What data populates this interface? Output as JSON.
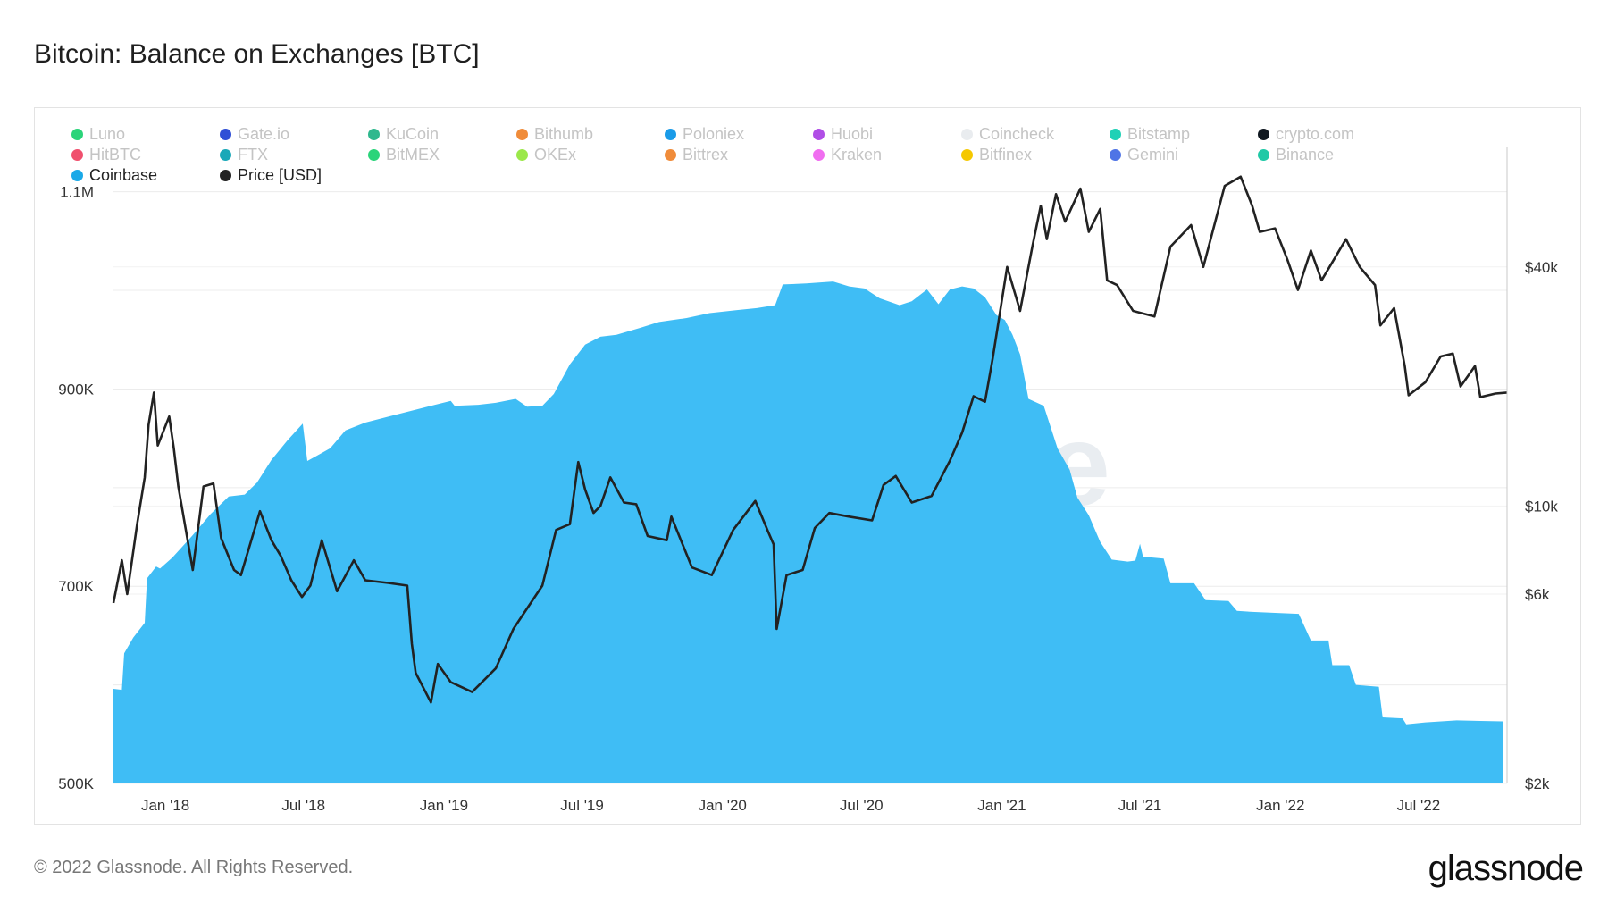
{
  "title": "Bitcoin: Balance on Exchanges [BTC]",
  "footer": {
    "copyright": "© 2022 Glassnode. All Rights Reserved.",
    "brand": "glassnode"
  },
  "watermark": "glassnode",
  "legend": [
    {
      "label": "Luno",
      "color": "#2bd47a",
      "active": false
    },
    {
      "label": "Gate.io",
      "color": "#2f4fd6",
      "active": false
    },
    {
      "label": "KuCoin",
      "color": "#2fb88e",
      "active": false
    },
    {
      "label": "Bithumb",
      "color": "#f08c3a",
      "active": false
    },
    {
      "label": "Poloniex",
      "color": "#1a9be8",
      "active": false
    },
    {
      "label": "Huobi",
      "color": "#b04ee6",
      "active": false
    },
    {
      "label": "Coincheck",
      "color": "#e9ecef",
      "active": false
    },
    {
      "label": "Bitstamp",
      "color": "#1fd1b6",
      "active": false
    },
    {
      "label": "crypto.com",
      "color": "#101820",
      "active": false
    },
    {
      "label": "HitBTC",
      "color": "#f0506e",
      "active": false
    },
    {
      "label": "FTX",
      "color": "#1aa8b8",
      "active": false
    },
    {
      "label": "BitMEX",
      "color": "#2bd47a",
      "active": false
    },
    {
      "label": "OKEx",
      "color": "#9be84a",
      "active": false
    },
    {
      "label": "Bittrex",
      "color": "#f08c3a",
      "active": false
    },
    {
      "label": "Kraken",
      "color": "#f06ef0",
      "active": false
    },
    {
      "label": "Bitfinex",
      "color": "#f5c800",
      "active": false
    },
    {
      "label": "Gemini",
      "color": "#4f74e6",
      "active": false
    },
    {
      "label": "Binance",
      "color": "#1fc9a6",
      "active": false
    },
    {
      "label": "Coinbase",
      "color": "#1aa9e8",
      "active": true
    },
    {
      "label": "Price [USD]",
      "color": "#222222",
      "active": true
    }
  ],
  "chart_data": {
    "type": "area",
    "title": "Bitcoin: Balance on Exchanges [BTC]",
    "x_tick_labels": [
      "Jan '18",
      "Jul '18",
      "Jan '19",
      "Jul '19",
      "Jan '20",
      "Jul '20",
      "Jan '21",
      "Jul '21",
      "Jan '22",
      "Jul '22"
    ],
    "y_left": {
      "ticks": [
        500000,
        700000,
        900000,
        1100000
      ],
      "tick_labels": [
        "500K",
        "700K",
        "900K",
        "1.1M"
      ],
      "range": [
        500000,
        1145000
      ]
    },
    "y_right": {
      "scale": "log",
      "ticks": [
        2000,
        6000,
        10000,
        40000
      ],
      "tick_labels": [
        "$2k",
        "$6k",
        "$10k",
        "$40k"
      ],
      "range": [
        2000,
        80000
      ]
    },
    "x_range": [
      "2017-10-25",
      "2022-10-25"
    ],
    "series": [
      {
        "name": "Coinbase",
        "axis": "left",
        "color": "#3fbdf5",
        "points": [
          [
            "2017-10-25",
            596000
          ],
          [
            "2017-11-05",
            595000
          ],
          [
            "2017-11-08",
            632000
          ],
          [
            "2017-11-20",
            648000
          ],
          [
            "2017-12-05",
            663000
          ],
          [
            "2017-12-08",
            708000
          ],
          [
            "2017-12-20",
            720000
          ],
          [
            "2017-12-25",
            718000
          ],
          [
            "2018-01-10",
            729000
          ],
          [
            "2018-02-05",
            751000
          ],
          [
            "2018-03-01",
            773000
          ],
          [
            "2018-03-25",
            791000
          ],
          [
            "2018-04-15",
            793000
          ],
          [
            "2018-05-01",
            805000
          ],
          [
            "2018-05-20",
            828000
          ],
          [
            "2018-06-10",
            848000
          ],
          [
            "2018-06-30",
            865000
          ],
          [
            "2018-07-06",
            827000
          ],
          [
            "2018-07-20",
            833000
          ],
          [
            "2018-08-05",
            840000
          ],
          [
            "2018-08-25",
            858000
          ],
          [
            "2018-09-20",
            866000
          ],
          [
            "2018-10-20",
            872000
          ],
          [
            "2018-11-15",
            877000
          ],
          [
            "2018-12-15",
            883000
          ],
          [
            "2019-01-10",
            888000
          ],
          [
            "2019-01-15",
            883000
          ],
          [
            "2019-02-15",
            884000
          ],
          [
            "2019-03-10",
            886000
          ],
          [
            "2019-04-05",
            890000
          ],
          [
            "2019-04-20",
            882000
          ],
          [
            "2019-05-10",
            883000
          ],
          [
            "2019-05-25",
            895000
          ],
          [
            "2019-06-15",
            925000
          ],
          [
            "2019-07-05",
            945000
          ],
          [
            "2019-07-25",
            953000
          ],
          [
            "2019-08-15",
            955000
          ],
          [
            "2019-09-15",
            962000
          ],
          [
            "2019-10-10",
            968000
          ],
          [
            "2019-11-15",
            972000
          ],
          [
            "2019-12-15",
            977000
          ],
          [
            "2020-01-20",
            980000
          ],
          [
            "2020-02-15",
            982000
          ],
          [
            "2020-03-10",
            985000
          ],
          [
            "2020-03-20",
            1006000
          ],
          [
            "2020-04-20",
            1007000
          ],
          [
            "2020-05-25",
            1009000
          ],
          [
            "2020-06-15",
            1004000
          ],
          [
            "2020-07-05",
            1002000
          ],
          [
            "2020-07-25",
            992000
          ],
          [
            "2020-08-20",
            985000
          ],
          [
            "2020-09-05",
            989000
          ],
          [
            "2020-09-25",
            1001000
          ],
          [
            "2020-10-10",
            986000
          ],
          [
            "2020-10-25",
            1001000
          ],
          [
            "2020-11-10",
            1004000
          ],
          [
            "2020-11-25",
            1002000
          ],
          [
            "2020-12-10",
            993000
          ],
          [
            "2020-12-25",
            975000
          ],
          [
            "2021-01-05",
            970000
          ],
          [
            "2021-01-15",
            955000
          ],
          [
            "2021-01-25",
            935000
          ],
          [
            "2021-02-05",
            890000
          ],
          [
            "2021-02-25",
            883000
          ],
          [
            "2021-03-15",
            840000
          ],
          [
            "2021-03-31",
            818000
          ],
          [
            "2021-04-10",
            790000
          ],
          [
            "2021-04-25",
            772000
          ],
          [
            "2021-05-10",
            745000
          ],
          [
            "2021-05-25",
            727000
          ],
          [
            "2021-06-15",
            725000
          ],
          [
            "2021-06-25",
            726000
          ],
          [
            "2021-07-01",
            743000
          ],
          [
            "2021-07-05",
            730000
          ],
          [
            "2021-08-01",
            728000
          ],
          [
            "2021-08-10",
            703000
          ],
          [
            "2021-09-10",
            703000
          ],
          [
            "2021-09-25",
            686000
          ],
          [
            "2021-10-25",
            685000
          ],
          [
            "2021-11-05",
            675000
          ],
          [
            "2021-11-25",
            674000
          ],
          [
            "2021-12-25",
            673000
          ],
          [
            "2022-01-25",
            672000
          ],
          [
            "2022-02-10",
            645000
          ],
          [
            "2022-03-05",
            645000
          ],
          [
            "2022-03-10",
            620000
          ],
          [
            "2022-04-01",
            620000
          ],
          [
            "2022-04-10",
            600000
          ],
          [
            "2022-05-10",
            598000
          ],
          [
            "2022-05-15",
            567000
          ],
          [
            "2022-06-10",
            566000
          ],
          [
            "2022-06-15",
            560000
          ],
          [
            "2022-07-10",
            562000
          ],
          [
            "2022-08-20",
            564000
          ],
          [
            "2022-10-20",
            563000
          ]
        ]
      },
      {
        "name": "Price [USD]",
        "axis": "right",
        "color": "#222222",
        "points": [
          [
            "2017-10-25",
            5700
          ],
          [
            "2017-11-05",
            7300
          ],
          [
            "2017-11-12",
            6000
          ],
          [
            "2017-11-25",
            9000
          ],
          [
            "2017-12-05",
            11800
          ],
          [
            "2017-12-10",
            16000
          ],
          [
            "2017-12-17",
            19300
          ],
          [
            "2017-12-22",
            14200
          ],
          [
            "2018-01-06",
            16800
          ],
          [
            "2018-01-12",
            14000
          ],
          [
            "2018-01-18",
            11200
          ],
          [
            "2018-02-06",
            6900
          ],
          [
            "2018-02-20",
            11200
          ],
          [
            "2018-03-05",
            11400
          ],
          [
            "2018-03-15",
            8300
          ],
          [
            "2018-04-01",
            6900
          ],
          [
            "2018-04-10",
            6700
          ],
          [
            "2018-05-05",
            9700
          ],
          [
            "2018-05-20",
            8200
          ],
          [
            "2018-06-01",
            7500
          ],
          [
            "2018-06-15",
            6500
          ],
          [
            "2018-06-29",
            5900
          ],
          [
            "2018-07-10",
            6300
          ],
          [
            "2018-07-25",
            8200
          ],
          [
            "2018-08-14",
            6100
          ],
          [
            "2018-09-05",
            7300
          ],
          [
            "2018-09-20",
            6500
          ],
          [
            "2018-10-20",
            6400
          ],
          [
            "2018-11-14",
            6300
          ],
          [
            "2018-11-20",
            4500
          ],
          [
            "2018-11-25",
            3800
          ],
          [
            "2018-12-15",
            3200
          ],
          [
            "2018-12-24",
            4000
          ],
          [
            "2019-01-10",
            3600
          ],
          [
            "2019-02-07",
            3400
          ],
          [
            "2019-03-10",
            3900
          ],
          [
            "2019-04-02",
            4900
          ],
          [
            "2019-05-10",
            6300
          ],
          [
            "2019-05-28",
            8700
          ],
          [
            "2019-06-15",
            9000
          ],
          [
            "2019-06-26",
            12900
          ],
          [
            "2019-07-05",
            11000
          ],
          [
            "2019-07-16",
            9600
          ],
          [
            "2019-07-25",
            10000
          ],
          [
            "2019-08-07",
            11800
          ],
          [
            "2019-08-25",
            10200
          ],
          [
            "2019-09-10",
            10100
          ],
          [
            "2019-09-25",
            8400
          ],
          [
            "2019-10-20",
            8200
          ],
          [
            "2019-10-26",
            9400
          ],
          [
            "2019-11-22",
            7000
          ],
          [
            "2019-12-18",
            6700
          ],
          [
            "2020-01-15",
            8700
          ],
          [
            "2020-02-13",
            10300
          ],
          [
            "2020-03-01",
            8600
          ],
          [
            "2020-03-08",
            8000
          ],
          [
            "2020-03-12",
            4900
          ],
          [
            "2020-03-25",
            6700
          ],
          [
            "2020-04-15",
            6900
          ],
          [
            "2020-05-01",
            8800
          ],
          [
            "2020-05-20",
            9600
          ],
          [
            "2020-06-15",
            9400
          ],
          [
            "2020-07-15",
            9200
          ],
          [
            "2020-07-30",
            11300
          ],
          [
            "2020-08-15",
            11900
          ],
          [
            "2020-09-05",
            10200
          ],
          [
            "2020-10-01",
            10600
          ],
          [
            "2020-10-25",
            13000
          ],
          [
            "2020-11-10",
            15300
          ],
          [
            "2020-11-25",
            18900
          ],
          [
            "2020-12-10",
            18300
          ],
          [
            "2020-12-20",
            23500
          ],
          [
            "2021-01-08",
            40000
          ],
          [
            "2021-01-25",
            31000
          ],
          [
            "2021-02-10",
            45000
          ],
          [
            "2021-02-21",
            57000
          ],
          [
            "2021-03-01",
            47000
          ],
          [
            "2021-03-13",
            61000
          ],
          [
            "2021-03-25",
            52000
          ],
          [
            "2021-04-14",
            63000
          ],
          [
            "2021-04-25",
            49000
          ],
          [
            "2021-05-10",
            56000
          ],
          [
            "2021-05-19",
            37000
          ],
          [
            "2021-06-01",
            36000
          ],
          [
            "2021-06-22",
            31000
          ],
          [
            "2021-07-20",
            30000
          ],
          [
            "2021-08-10",
            45000
          ],
          [
            "2021-09-06",
            51000
          ],
          [
            "2021-09-22",
            40000
          ],
          [
            "2021-10-20",
            64000
          ],
          [
            "2021-11-10",
            67500
          ],
          [
            "2021-11-25",
            57000
          ],
          [
            "2021-12-05",
            49000
          ],
          [
            "2021-12-25",
            50000
          ],
          [
            "2022-01-10",
            41800
          ],
          [
            "2022-01-24",
            35000
          ],
          [
            "2022-02-10",
            44000
          ],
          [
            "2022-02-24",
            37000
          ],
          [
            "2022-03-28",
            47000
          ],
          [
            "2022-04-15",
            40000
          ],
          [
            "2022-05-05",
            36000
          ],
          [
            "2022-05-12",
            28500
          ],
          [
            "2022-05-30",
            31500
          ],
          [
            "2022-06-13",
            22500
          ],
          [
            "2022-06-18",
            19000
          ],
          [
            "2022-07-10",
            20500
          ],
          [
            "2022-07-30",
            23800
          ],
          [
            "2022-08-15",
            24200
          ],
          [
            "2022-08-25",
            20000
          ],
          [
            "2022-09-13",
            22500
          ],
          [
            "2022-09-20",
            18800
          ],
          [
            "2022-10-10",
            19200
          ],
          [
            "2022-10-25",
            19300
          ]
        ]
      }
    ],
    "grid": true
  }
}
